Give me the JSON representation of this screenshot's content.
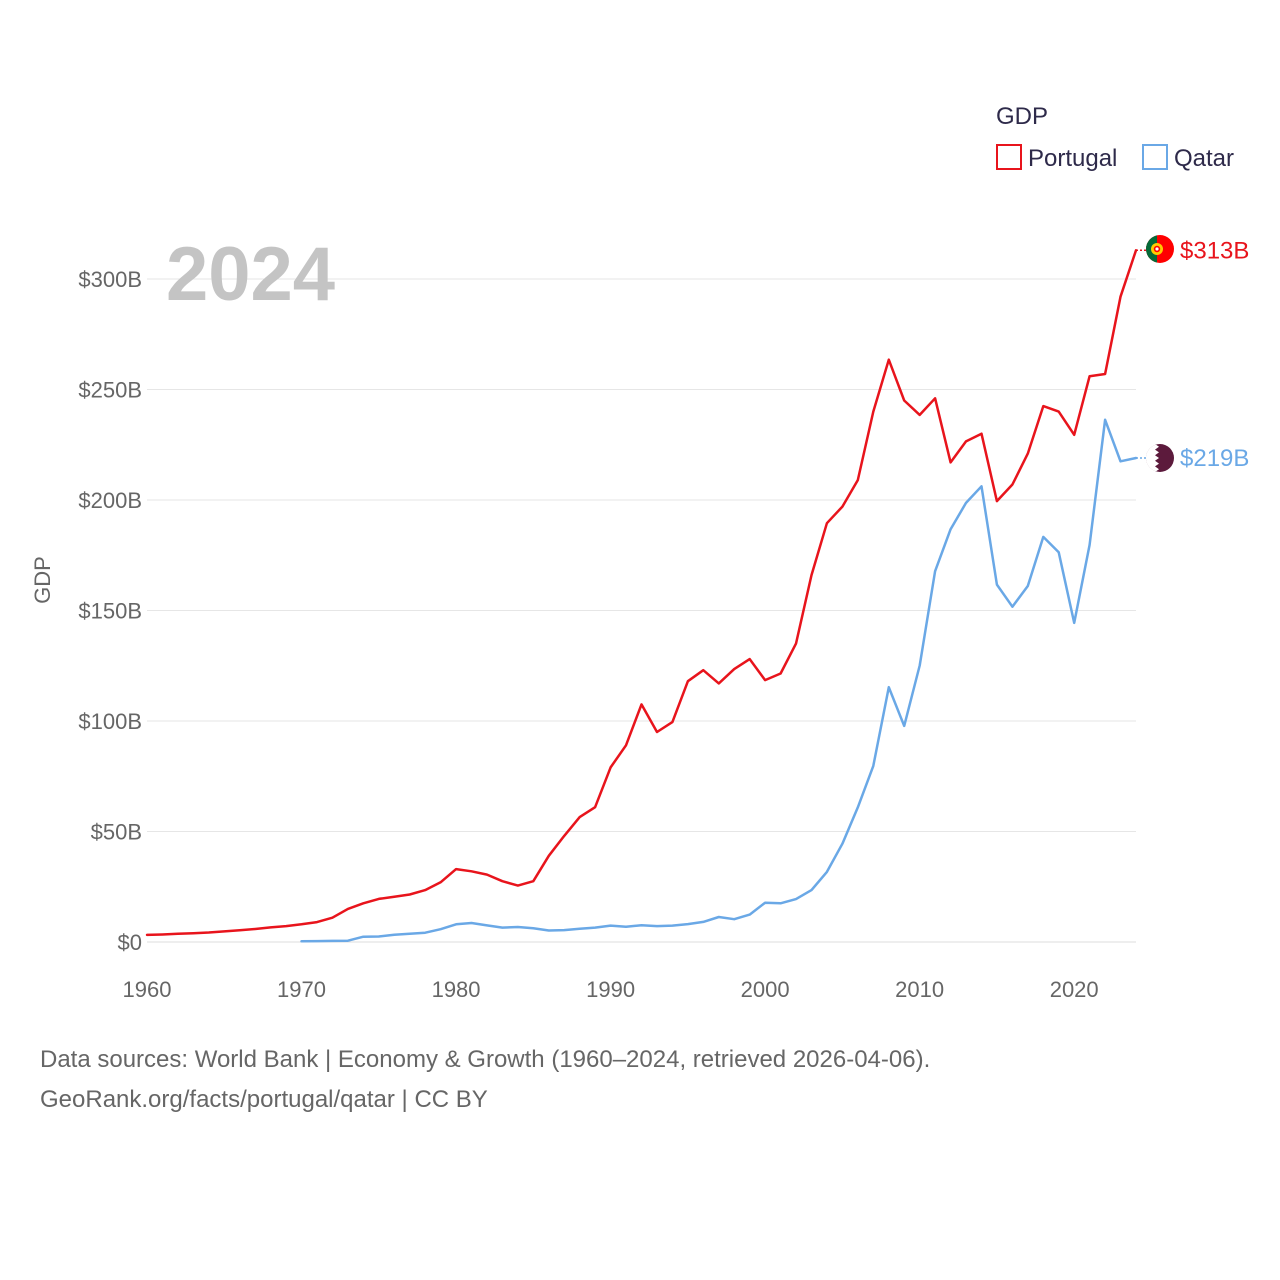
{
  "chart_data": {
    "type": "line",
    "title": "GDP",
    "ylabel": "GDP",
    "xlabel": "",
    "year_watermark": "2024",
    "xlim": [
      1960,
      2024
    ],
    "ylim": [
      0,
      313
    ],
    "x_ticks": [
      1960,
      1970,
      1980,
      1990,
      2000,
      2010,
      2020
    ],
    "x_tick_labels": [
      "1960",
      "1970",
      "1980",
      "1990",
      "2000",
      "2010",
      "2020"
    ],
    "y_ticks": [
      0,
      50,
      100,
      150,
      200,
      250,
      300
    ],
    "y_tick_labels": [
      "$0",
      "$50B",
      "$100B",
      "$150B",
      "$200B",
      "$250B",
      "$300B"
    ],
    "grid": true,
    "legend": {
      "title": "GDP",
      "position": "top-right"
    },
    "series": [
      {
        "name": "Portugal",
        "color": "#e8141c",
        "end_label": "$313B",
        "x": [
          1960,
          1961,
          1962,
          1963,
          1964,
          1965,
          1966,
          1967,
          1968,
          1969,
          1970,
          1971,
          1972,
          1973,
          1974,
          1975,
          1976,
          1977,
          1978,
          1979,
          1980,
          1981,
          1982,
          1983,
          1984,
          1985,
          1986,
          1987,
          1988,
          1989,
          1990,
          1991,
          1992,
          1993,
          1994,
          1995,
          1996,
          1997,
          1998,
          1999,
          2000,
          2001,
          2002,
          2003,
          2004,
          2005,
          2006,
          2007,
          2008,
          2009,
          2010,
          2011,
          2012,
          2013,
          2014,
          2015,
          2016,
          2017,
          2018,
          2019,
          2020,
          2021,
          2022,
          2023,
          2024
        ],
        "values": [
          3.2,
          3.4,
          3.7,
          4.0,
          4.3,
          4.8,
          5.3,
          5.9,
          6.6,
          7.2,
          8.0,
          9.0,
          11.0,
          15.0,
          17.5,
          19.5,
          20.5,
          21.5,
          23.5,
          27.0,
          33.0,
          32.0,
          30.5,
          27.5,
          25.5,
          27.5,
          39.0,
          48.0,
          56.5,
          61.0,
          79.0,
          89.0,
          107.5,
          95.0,
          99.5,
          118.0,
          123.0,
          117.0,
          123.5,
          128.0,
          118.5,
          121.5,
          135.0,
          166.0,
          189.5,
          197.0,
          209.0,
          240.0,
          263.5,
          245.0,
          238.5,
          246.0,
          217.0,
          226.5,
          230.0,
          199.5,
          207.0,
          221.0,
          242.5,
          240.0,
          229.5,
          256.0,
          257.0,
          292.0,
          313.0
        ]
      },
      {
        "name": "Qatar",
        "color": "#6aa8e6",
        "end_label": "$219B",
        "x": [
          1970,
          1971,
          1972,
          1973,
          1974,
          1975,
          1976,
          1977,
          1978,
          1979,
          1980,
          1981,
          1982,
          1983,
          1984,
          1985,
          1986,
          1987,
          1988,
          1989,
          1990,
          1991,
          1992,
          1993,
          1994,
          1995,
          1996,
          1997,
          1998,
          1999,
          2000,
          2001,
          2002,
          2003,
          2004,
          2005,
          2006,
          2007,
          2008,
          2009,
          2010,
          2011,
          2012,
          2013,
          2014,
          2015,
          2016,
          2017,
          2018,
          2019,
          2020,
          2021,
          2022,
          2023,
          2024
        ],
        "values": [
          0.3,
          0.4,
          0.5,
          0.6,
          2.4,
          2.5,
          3.3,
          3.7,
          4.2,
          5.8,
          8.0,
          8.6,
          7.5,
          6.5,
          6.8,
          6.2,
          5.2,
          5.4,
          6.0,
          6.5,
          7.4,
          6.9,
          7.6,
          7.2,
          7.4,
          8.1,
          9.1,
          11.3,
          10.3,
          12.4,
          17.8,
          17.5,
          19.4,
          23.5,
          31.7,
          44.5,
          60.9,
          79.7,
          115.3,
          97.8,
          125.1,
          167.8,
          186.8,
          198.7,
          206.2,
          161.7,
          151.7,
          161.1,
          183.3,
          176.4,
          144.4,
          179.7,
          236.3,
          217.5,
          219.0
        ]
      }
    ]
  },
  "footer": {
    "line1": "Data sources: World Bank | Economy & Growth (1960–2024, retrieved 2026-04-06).",
    "line2": "GeoRank.org/facts/portugal/qatar | CC BY"
  }
}
